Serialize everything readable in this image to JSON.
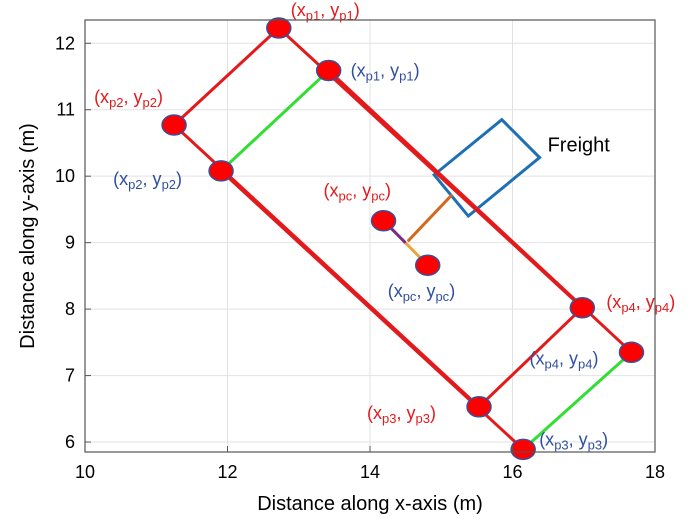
{
  "chart_data": {
    "type": "scatter",
    "title": "",
    "xlabel": "Distance along x-axis (m)",
    "ylabel": "Distance along y-axis (m)",
    "xlim": [
      10,
      18
    ],
    "ylim": [
      5.85,
      12.35
    ],
    "xticks": [
      "10",
      "12",
      "14",
      "16",
      "18"
    ],
    "yticks": [
      "6",
      "7",
      "8",
      "9",
      "10",
      "11",
      "12"
    ],
    "xtick_values": [
      10,
      12,
      14,
      16,
      18
    ],
    "ytick_values": [
      6,
      7,
      8,
      9,
      10,
      11,
      12
    ],
    "grid": true,
    "colors": {
      "outer_edge": "#e31a1c",
      "inner_edge_green": "#33dd33",
      "inner_edge_red": "#e31a1c",
      "marker_fill": "#ff0000",
      "marker_stroke": "#3a4f9a",
      "label_red": "#e31a1c",
      "label_blue": "#2f4f9f",
      "freight_box": "#1f6fb4",
      "center_link_orange": "#d2691e",
      "center_link_purple": "#7a2a8a",
      "center_link_yellow": "#e6a63a"
    },
    "outer_rectangle": [
      {
        "x": 12.72,
        "y": 12.23
      },
      {
        "x": 16.98,
        "y": 8.02
      },
      {
        "x": 15.53,
        "y": 6.53
      },
      {
        "x": 11.25,
        "y": 10.77
      }
    ],
    "inner_rectangle": [
      {
        "x": 13.42,
        "y": 11.59
      },
      {
        "x": 17.67,
        "y": 7.35
      },
      {
        "x": 16.15,
        "y": 5.89
      },
      {
        "x": 11.91,
        "y": 10.08
      }
    ],
    "inner_edges": [
      {
        "from": 0,
        "to": 1,
        "color": "red"
      },
      {
        "from": 1,
        "to": 2,
        "color": "green"
      },
      {
        "from": 2,
        "to": 3,
        "color": "red"
      },
      {
        "from": 3,
        "to": 0,
        "color": "green"
      }
    ],
    "center_points": [
      {
        "x": 14.19,
        "y": 9.33
      },
      {
        "x": 14.81,
        "y": 8.66
      }
    ],
    "freight_box": [
      {
        "x": 14.9,
        "y": 10.02
      },
      {
        "x": 15.85,
        "y": 10.85
      },
      {
        "x": 16.38,
        "y": 10.28
      },
      {
        "x": 15.38,
        "y": 9.4
      }
    ],
    "freight_link": {
      "from": {
        "x": 15.15,
        "y": 9.72
      },
      "to": {
        "x": 14.53,
        "y": 9.02
      }
    },
    "annotations": [
      {
        "name": "xp1-red",
        "x": 12.72,
        "y": 12.23,
        "base": [
          "x",
          "y"
        ],
        "sub": [
          "p1",
          "p1"
        ],
        "color": "red",
        "dx": 12,
        "dy": -12,
        "anchor": "start"
      },
      {
        "name": "xp1-blue",
        "x": 13.42,
        "y": 11.59,
        "base": [
          "x",
          "y"
        ],
        "sub": [
          "p1",
          "p1"
        ],
        "color": "blue",
        "dx": 22,
        "dy": 6,
        "anchor": "start"
      },
      {
        "name": "xp2-red",
        "x": 11.25,
        "y": 10.77,
        "base": [
          "x",
          "y"
        ],
        "sub": [
          "p2",
          "p2"
        ],
        "color": "red",
        "dx": -80,
        "dy": -22,
        "anchor": "start"
      },
      {
        "name": "xp2-blue",
        "x": 11.91,
        "y": 10.08,
        "base": [
          "x",
          "y"
        ],
        "sub": [
          "p2",
          "p2"
        ],
        "color": "blue",
        "dx": -108,
        "dy": 14,
        "anchor": "start"
      },
      {
        "name": "xpc-red",
        "x": 14.19,
        "y": 9.33,
        "base": [
          "x",
          "y"
        ],
        "sub": [
          "pc",
          "pc"
        ],
        "color": "red",
        "dx": -60,
        "dy": -24,
        "anchor": "start"
      },
      {
        "name": "xpc-blue",
        "x": 14.81,
        "y": 8.66,
        "base": [
          "x",
          "y"
        ],
        "sub": [
          "pc",
          "pc"
        ],
        "color": "blue",
        "dx": -40,
        "dy": 32,
        "anchor": "start"
      },
      {
        "name": "xp4-red",
        "x": 16.98,
        "y": 8.02,
        "base": [
          "x",
          "y"
        ],
        "sub": [
          "p4",
          "p4"
        ],
        "color": "red",
        "dx": 24,
        "dy": 0,
        "anchor": "start"
      },
      {
        "name": "xp4-blue",
        "x": 17.67,
        "y": 7.35,
        "base": [
          "x",
          "y"
        ],
        "sub": [
          "p4",
          "p4"
        ],
        "color": "blue",
        "dx": -102,
        "dy": 12,
        "anchor": "start"
      },
      {
        "name": "xp3-red",
        "x": 15.53,
        "y": 6.53,
        "base": [
          "x",
          "y"
        ],
        "sub": [
          "p3",
          "p3"
        ],
        "color": "red",
        "dx": -112,
        "dy": 12,
        "anchor": "start"
      },
      {
        "name": "xp3-blue",
        "x": 16.15,
        "y": 5.89,
        "base": [
          "x",
          "y"
        ],
        "sub": [
          "p3",
          "p3"
        ],
        "color": "blue",
        "dx": 16,
        "dy": -4,
        "anchor": "start"
      }
    ],
    "freight_label": {
      "text": "Freight",
      "x": 16.38,
      "y": 10.28
    }
  }
}
